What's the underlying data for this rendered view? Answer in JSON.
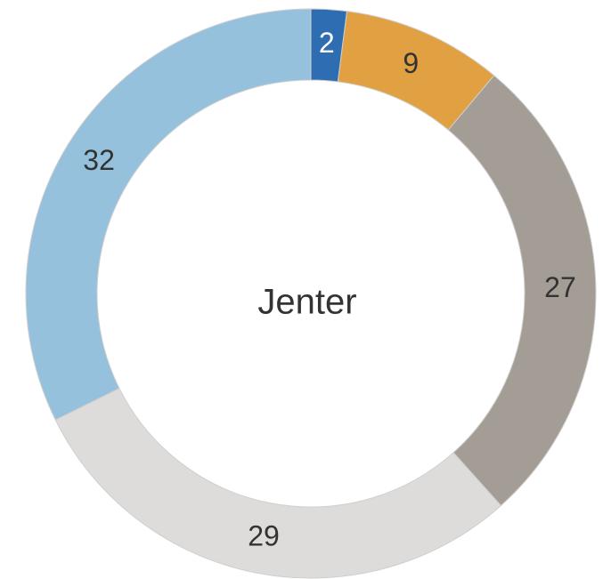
{
  "chart_data": {
    "type": "donut",
    "center_label": "Jenter",
    "categories": [
      null,
      null,
      null,
      null,
      null
    ],
    "values": [
      2,
      9,
      27,
      29,
      32
    ],
    "colors": [
      "#2f6db3",
      "#e1a142",
      "#a39d96",
      "#dddcda",
      "#95c1dd"
    ]
  }
}
